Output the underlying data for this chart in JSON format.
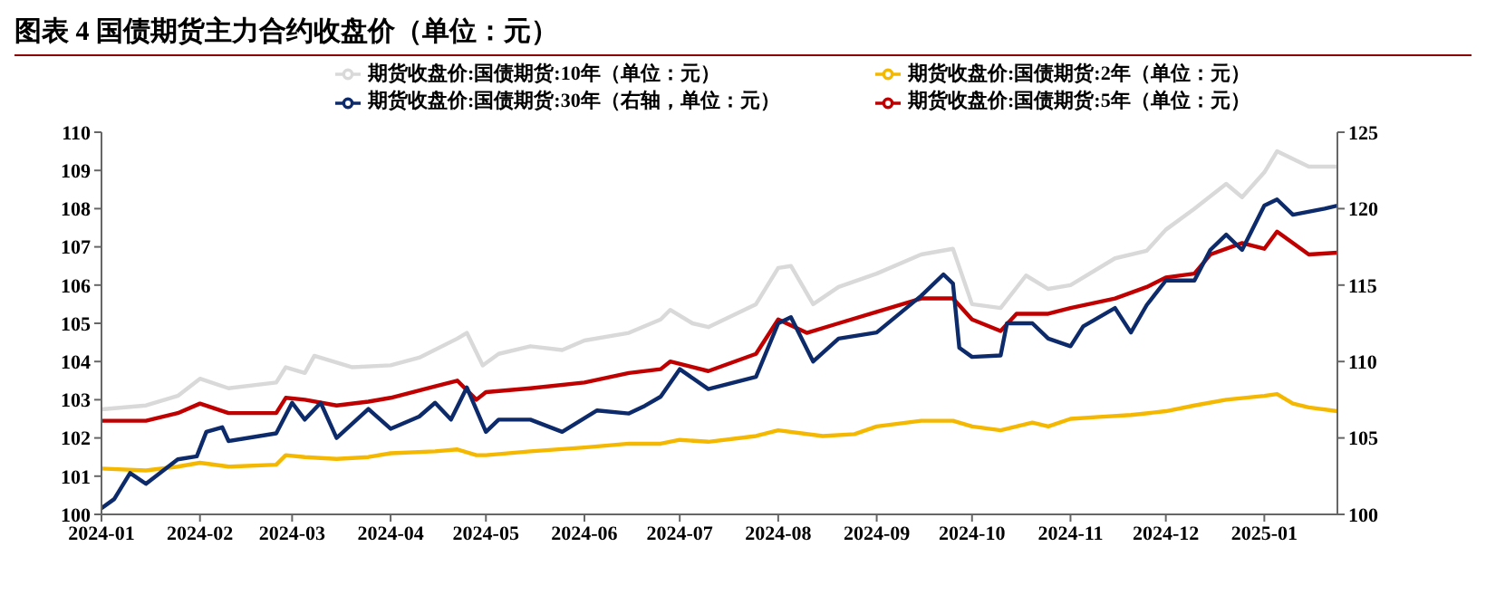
{
  "chart_data": {
    "type": "line",
    "title": "图表 4  国债期货主力合约收盘价（单位：元）",
    "xlim": [
      "2024-01-01",
      "2025-01-24"
    ],
    "xticks": [
      "2024-01",
      "2024-02",
      "2024-03",
      "2024-04",
      "2024-05",
      "2024-06",
      "2024-07",
      "2024-08",
      "2024-09",
      "2024-10",
      "2024-11",
      "2024-12",
      "2025-01"
    ],
    "ylim": [
      100,
      110
    ],
    "yticks": [
      100,
      101,
      102,
      103,
      104,
      105,
      106,
      107,
      108,
      109,
      110
    ],
    "y2lim": [
      100,
      125
    ],
    "y2ticks": [
      100,
      105,
      110,
      115,
      120,
      125
    ],
    "legend": "top",
    "grid": false,
    "marker": "none",
    "line_style": "solid",
    "series": [
      {
        "name": "期货收盘价:国债期货:2年（单位：元）",
        "color": "#f5b800",
        "x": [
          "2024-01-01",
          "2024-01-15",
          "2024-01-25",
          "2024-02-01",
          "2024-02-10",
          "2024-02-25",
          "2024-02-28",
          "2024-03-05",
          "2024-03-15",
          "2024-03-25",
          "2024-04-01",
          "2024-04-15",
          "2024-04-22",
          "2024-04-28",
          "2024-05-01",
          "2024-05-15",
          "2024-06-01",
          "2024-06-15",
          "2024-06-25",
          "2024-07-01",
          "2024-07-10",
          "2024-07-25",
          "2024-08-01",
          "2024-08-15",
          "2024-08-25",
          "2024-09-01",
          "2024-09-15",
          "2024-09-25",
          "2024-10-01",
          "2024-10-10",
          "2024-10-20",
          "2024-10-25",
          "2024-11-01",
          "2024-11-10",
          "2024-11-20",
          "2024-12-01",
          "2024-12-10",
          "2024-12-20",
          "2025-01-01",
          "2025-01-05",
          "2025-01-10",
          "2025-01-15",
          "2025-01-24"
        ],
        "values": [
          101.2,
          101.15,
          101.25,
          101.35,
          101.25,
          101.3,
          101.55,
          101.5,
          101.45,
          101.5,
          101.6,
          101.65,
          101.7,
          101.55,
          101.55,
          101.65,
          101.75,
          101.85,
          101.85,
          101.95,
          101.9,
          102.05,
          102.2,
          102.05,
          102.1,
          102.3,
          102.45,
          102.45,
          102.3,
          102.2,
          102.4,
          102.3,
          102.5,
          102.55,
          102.6,
          102.7,
          102.85,
          103.0,
          103.1,
          103.15,
          102.9,
          102.8,
          102.7
        ]
      },
      {
        "name": "期货收盘价:国债期货:5年（单位：元）",
        "color": "#c00000",
        "x": [
          "2024-01-01",
          "2024-01-15",
          "2024-01-25",
          "2024-02-01",
          "2024-02-10",
          "2024-02-25",
          "2024-02-28",
          "2024-03-05",
          "2024-03-15",
          "2024-03-25",
          "2024-04-01",
          "2024-04-15",
          "2024-04-22",
          "2024-04-28",
          "2024-05-01",
          "2024-05-15",
          "2024-06-01",
          "2024-06-15",
          "2024-06-25",
          "2024-06-28",
          "2024-07-10",
          "2024-07-25",
          "2024-08-01",
          "2024-08-10",
          "2024-08-20",
          "2024-09-01",
          "2024-09-15",
          "2024-09-25",
          "2024-10-01",
          "2024-10-10",
          "2024-10-15",
          "2024-10-25",
          "2024-11-01",
          "2024-11-15",
          "2024-11-25",
          "2024-12-01",
          "2024-12-10",
          "2024-12-15",
          "2024-12-25",
          "2025-01-01",
          "2025-01-05",
          "2025-01-15",
          "2025-01-24"
        ],
        "values": [
          102.45,
          102.45,
          102.65,
          102.9,
          102.65,
          102.65,
          103.05,
          103.0,
          102.85,
          102.95,
          103.05,
          103.35,
          103.5,
          103.0,
          103.2,
          103.3,
          103.45,
          103.7,
          103.8,
          104.0,
          103.75,
          104.2,
          105.1,
          104.75,
          105.0,
          105.3,
          105.65,
          105.65,
          105.1,
          104.8,
          105.25,
          105.25,
          105.4,
          105.65,
          105.95,
          106.2,
          106.3,
          106.8,
          107.1,
          106.95,
          107.4,
          106.8,
          106.85
        ]
      },
      {
        "name": "期货收盘价:国债期货:10年（单位：元）",
        "color": "#d9d9d9",
        "x": [
          "2024-01-01",
          "2024-01-15",
          "2024-01-25",
          "2024-02-01",
          "2024-02-10",
          "2024-02-25",
          "2024-02-28",
          "2024-03-05",
          "2024-03-08",
          "2024-03-20",
          "2024-04-01",
          "2024-04-10",
          "2024-04-22",
          "2024-04-25",
          "2024-04-30",
          "2024-05-05",
          "2024-05-15",
          "2024-05-25",
          "2024-06-01",
          "2024-06-15",
          "2024-06-25",
          "2024-06-28",
          "2024-07-05",
          "2024-07-10",
          "2024-07-25",
          "2024-08-01",
          "2024-08-05",
          "2024-08-12",
          "2024-08-20",
          "2024-09-01",
          "2024-09-15",
          "2024-09-25",
          "2024-10-01",
          "2024-10-10",
          "2024-10-18",
          "2024-10-25",
          "2024-11-01",
          "2024-11-15",
          "2024-11-25",
          "2024-12-01",
          "2024-12-10",
          "2024-12-20",
          "2024-12-25",
          "2025-01-01",
          "2025-01-05",
          "2025-01-15",
          "2025-01-24"
        ],
        "values": [
          102.75,
          102.85,
          103.1,
          103.55,
          103.3,
          103.45,
          103.85,
          103.7,
          104.15,
          103.85,
          103.9,
          104.1,
          104.6,
          104.75,
          103.9,
          104.2,
          104.4,
          104.3,
          104.55,
          104.75,
          105.1,
          105.35,
          105.0,
          104.9,
          105.5,
          106.45,
          106.5,
          105.5,
          105.95,
          106.3,
          106.8,
          106.95,
          105.5,
          105.4,
          106.25,
          105.9,
          106.0,
          106.7,
          106.9,
          107.45,
          108.0,
          108.65,
          108.3,
          108.95,
          109.5,
          109.1,
          109.1
        ]
      },
      {
        "name": "期货收盘价:国债期货:30年（右轴，单位：元）",
        "color": "#0d2a6b",
        "axis": "y2",
        "x": [
          "2024-01-01",
          "2024-01-05",
          "2024-01-10",
          "2024-01-15",
          "2024-01-25",
          "2024-01-31",
          "2024-02-03",
          "2024-02-08",
          "2024-02-10",
          "2024-02-25",
          "2024-03-01",
          "2024-03-05",
          "2024-03-10",
          "2024-03-15",
          "2024-03-25",
          "2024-04-01",
          "2024-04-10",
          "2024-04-15",
          "2024-04-20",
          "2024-04-25",
          "2024-05-01",
          "2024-05-05",
          "2024-05-15",
          "2024-05-25",
          "2024-06-05",
          "2024-06-15",
          "2024-06-20",
          "2024-06-25",
          "2024-07-01",
          "2024-07-10",
          "2024-07-25",
          "2024-08-01",
          "2024-08-05",
          "2024-08-12",
          "2024-08-20",
          "2024-09-01",
          "2024-09-15",
          "2024-09-22",
          "2024-09-25",
          "2024-09-27",
          "2024-10-01",
          "2024-10-10",
          "2024-10-12",
          "2024-10-20",
          "2024-10-25",
          "2024-11-01",
          "2024-11-05",
          "2024-11-15",
          "2024-11-20",
          "2024-11-25",
          "2024-12-01",
          "2024-12-10",
          "2024-12-15",
          "2024-12-20",
          "2024-12-25",
          "2025-01-01",
          "2025-01-05",
          "2025-01-10",
          "2025-01-20",
          "2025-01-24"
        ],
        "values": [
          100.4,
          101.0,
          102.7,
          102.0,
          103.6,
          103.8,
          105.4,
          105.7,
          104.8,
          105.3,
          107.3,
          106.2,
          107.3,
          105.0,
          106.9,
          105.6,
          106.4,
          107.3,
          106.2,
          108.3,
          105.4,
          106.2,
          106.2,
          105.4,
          106.8,
          106.6,
          107.1,
          107.7,
          109.5,
          108.2,
          109.0,
          112.5,
          112.9,
          110.0,
          111.5,
          111.9,
          114.3,
          115.7,
          115.1,
          110.9,
          110.3,
          110.4,
          112.5,
          112.5,
          111.5,
          111.0,
          112.3,
          113.5,
          111.9,
          113.7,
          115.3,
          115.3,
          117.3,
          118.3,
          117.3,
          120.2,
          120.6,
          119.6,
          120.0,
          120.2
        ]
      }
    ]
  }
}
